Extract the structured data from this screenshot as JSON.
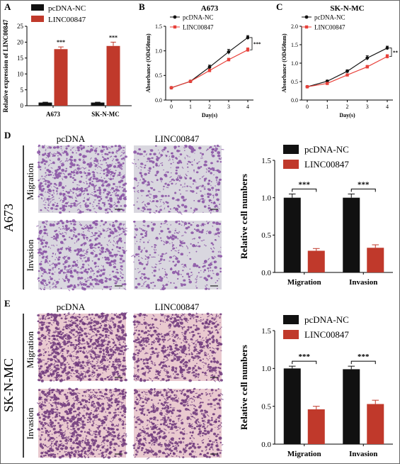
{
  "panels": {
    "A": "A",
    "B": "B",
    "C": "C",
    "D": "D",
    "E": "E"
  },
  "legend": {
    "nc": "pcDNA-NC",
    "linc": "LINC00847"
  },
  "colors": {
    "black": "#111111",
    "red": "#c0392b",
    "line_red": "#e8413a",
    "micro_d": "#7a3a9a",
    "micro_e": "#5a1f6e",
    "bg_d": "#d9d7df",
    "bg_e": "#e9c9cf"
  },
  "micro": {
    "col_pcdna": "pcDNA",
    "col_linc": "LINC00847",
    "row_migration": "Migration",
    "row_invasion": "Invasion",
    "row_a673": "A673",
    "row_sknmc": "SK-N-MC"
  },
  "chart_data": [
    {
      "id": "A",
      "type": "bar",
      "ylabel": "Relative expression of LINC00847",
      "ylim": [
        0,
        25
      ],
      "yticks": [
        0,
        5,
        10,
        15,
        20,
        25
      ],
      "categories": [
        "A673",
        "SK-N-MC"
      ],
      "series": [
        {
          "name": "pcDNA-NC",
          "values": [
            1.0,
            1.0
          ],
          "errors": [
            0.1,
            0.1
          ]
        },
        {
          "name": "LINC00847",
          "values": [
            17.8,
            18.8
          ],
          "errors": [
            0.7,
            1.2
          ]
        }
      ],
      "annotations": [
        "***",
        "***"
      ]
    },
    {
      "id": "B",
      "type": "line",
      "title": "A673",
      "xlabel": "Day(s)",
      "ylabel": "Absorbance (OD450nm)",
      "x": [
        0,
        1,
        2,
        3,
        4
      ],
      "xlim": [
        0,
        4
      ],
      "ylim": [
        0,
        1.5
      ],
      "yticks": [
        0.0,
        0.5,
        1.0,
        1.5
      ],
      "series": [
        {
          "name": "pcDNA-NC",
          "values": [
            0.25,
            0.38,
            0.67,
            0.98,
            1.27
          ],
          "errors": [
            0.02,
            0.02,
            0.04,
            0.05,
            0.04
          ]
        },
        {
          "name": "LINC00847",
          "values": [
            0.25,
            0.38,
            0.6,
            0.82,
            1.02
          ],
          "errors": [
            0.02,
            0.02,
            0.03,
            0.03,
            0.04
          ]
        }
      ],
      "annotation": "***"
    },
    {
      "id": "C",
      "type": "line",
      "title": "SK-N-MC",
      "xlabel": "Day(s)",
      "ylabel": "Absorbance (OD450nm)",
      "x": [
        0,
        1,
        2,
        3,
        4
      ],
      "xlim": [
        0,
        4
      ],
      "ylim": [
        0,
        2.0
      ],
      "yticks": [
        0.0,
        0.5,
        1.0,
        1.5,
        2.0
      ],
      "series": [
        {
          "name": "pcDNA-NC",
          "values": [
            0.36,
            0.51,
            0.78,
            1.14,
            1.41
          ],
          "errors": [
            0.02,
            0.03,
            0.04,
            0.06,
            0.05
          ]
        },
        {
          "name": "LINC00847",
          "values": [
            0.36,
            0.45,
            0.68,
            0.9,
            1.18
          ],
          "errors": [
            0.02,
            0.03,
            0.03,
            0.04,
            0.05
          ]
        }
      ],
      "annotation": "**"
    },
    {
      "id": "D",
      "type": "bar",
      "ylabel": "Relative cell numbers",
      "ylim": [
        0,
        1.5
      ],
      "yticks": [
        0.0,
        0.5,
        1.0,
        1.5
      ],
      "categories": [
        "Migration",
        "Invasion"
      ],
      "series": [
        {
          "name": "pcDNA-NC",
          "values": [
            1.0,
            1.0
          ],
          "errors": [
            0.05,
            0.05
          ]
        },
        {
          "name": "LINC00847",
          "values": [
            0.29,
            0.33
          ],
          "errors": [
            0.03,
            0.04
          ]
        }
      ],
      "annotations": [
        "***",
        "***"
      ]
    },
    {
      "id": "E",
      "type": "bar",
      "ylabel": "Relative cell numbers",
      "ylim": [
        0,
        1.5
      ],
      "yticks": [
        0.0,
        0.5,
        1.0,
        1.5
      ],
      "categories": [
        "Migration",
        "Invasion"
      ],
      "series": [
        {
          "name": "pcDNA-NC",
          "values": [
            1.0,
            0.99
          ],
          "errors": [
            0.03,
            0.04
          ]
        },
        {
          "name": "LINC00847",
          "values": [
            0.46,
            0.53
          ],
          "errors": [
            0.04,
            0.05
          ]
        }
      ],
      "annotations": [
        "***",
        "***"
      ]
    }
  ]
}
